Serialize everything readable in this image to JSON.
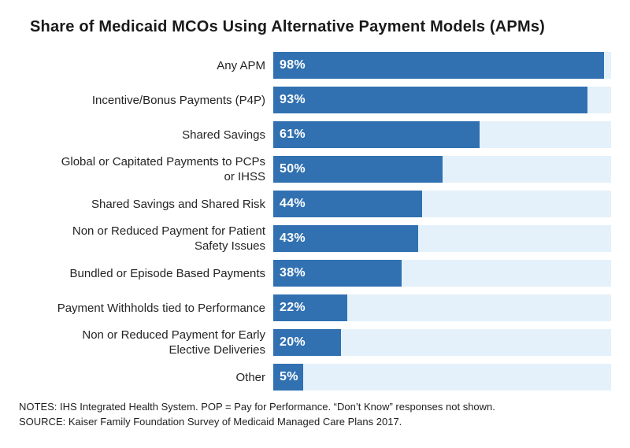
{
  "chart_data": {
    "type": "bar",
    "orientation": "horizontal",
    "title": "Share of Medicaid MCOs Using Alternative Payment Models (APMs)",
    "categories": [
      "Any APM",
      "Incentive/Bonus Payments (P4P)",
      "Shared Savings",
      "Global or Capitated Payments to PCPs\nor IHSS",
      "Shared Savings and Shared Risk",
      "Non or Reduced Payment for Patient\nSafety Issues",
      "Bundled or Episode Based Payments",
      "Payment Withholds tied to Performance",
      "Non or Reduced Payment for Early\nElective Deliveries",
      "Other"
    ],
    "values": [
      98,
      93,
      61,
      50,
      44,
      43,
      38,
      22,
      20,
      5
    ],
    "value_labels": [
      "98%",
      "93%",
      "61%",
      "50%",
      "44%",
      "43%",
      "38%",
      "22%",
      "20%",
      "5%"
    ],
    "xlim": [
      0,
      100
    ],
    "grid": false,
    "legend": false,
    "bar_color": "#3171B1",
    "track_color": "#E4F1FB",
    "value_label_color": "#FFFFFF"
  },
  "footer": {
    "notes": "NOTES: IHS Integrated Health System. POP = Pay for Performance. “Don’t Know” responses not shown.",
    "source": "SOURCE: Kaiser Family Foundation Survey of Medicaid Managed Care Plans 2017."
  }
}
